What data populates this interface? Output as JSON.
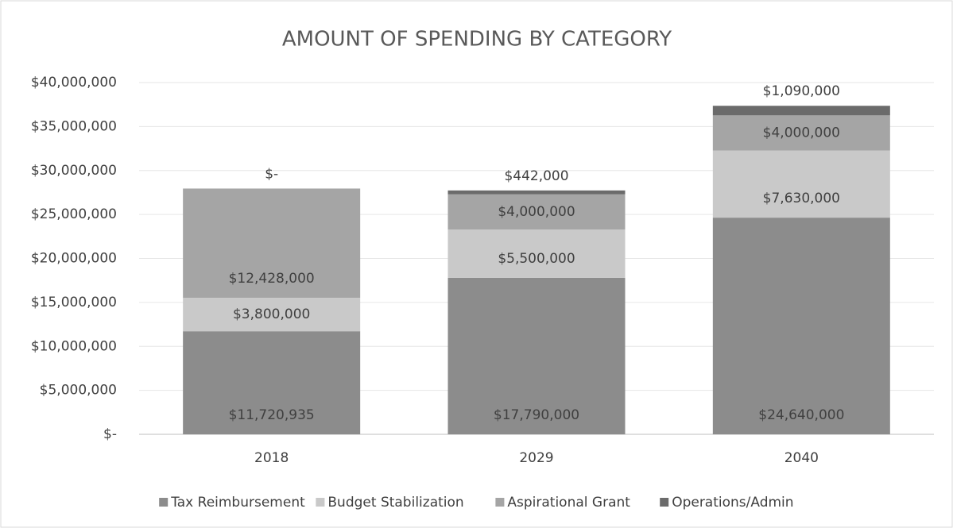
{
  "chart_data": {
    "type": "stacked_bar",
    "title": "AMOUNT OF SPENDING BY CATEGORY",
    "categories": [
      "2018",
      "2029",
      "2040"
    ],
    "series": [
      {
        "name": "Tax Reimbursement",
        "color": "#8c8c8c",
        "values": [
          11720935,
          17790000,
          24640000
        ],
        "value_labels": [
          "$11,720,935",
          "$17,790,000",
          "$24,640,000"
        ]
      },
      {
        "name": "Budget Stabilization",
        "color": "#c9c9c9",
        "values": [
          3800000,
          5500000,
          7630000
        ],
        "value_labels": [
          "$3,800,000",
          "$5,500,000",
          "$7,630,000"
        ]
      },
      {
        "name": "Aspirational Grant",
        "color": "#a5a5a5",
        "values": [
          12428000,
          4000000,
          4000000
        ],
        "value_labels": [
          "$12,428,000",
          "$4,000,000",
          "$4,000,000"
        ]
      },
      {
        "name": "Operations/Admin",
        "color": "#6b6b6b",
        "values": [
          0,
          442000,
          1090000
        ],
        "value_labels": [
          "$-",
          "$442,000",
          "$1,090,000"
        ]
      }
    ],
    "ylim": [
      0,
      40000000
    ],
    "yticks": [
      {
        "value": 0,
        "label": "$-"
      },
      {
        "value": 5000000,
        "label": "$5,000,000"
      },
      {
        "value": 10000000,
        "label": "$10,000,000"
      },
      {
        "value": 15000000,
        "label": "$15,000,000"
      },
      {
        "value": 20000000,
        "label": "$20,000,000"
      },
      {
        "value": 25000000,
        "label": "$25,000,000"
      },
      {
        "value": 30000000,
        "label": "$30,000,000"
      },
      {
        "value": 35000000,
        "label": "$35,000,000"
      },
      {
        "value": 40000000,
        "label": "$40,000,000"
      }
    ],
    "grid": true,
    "legend": "bottom"
  }
}
